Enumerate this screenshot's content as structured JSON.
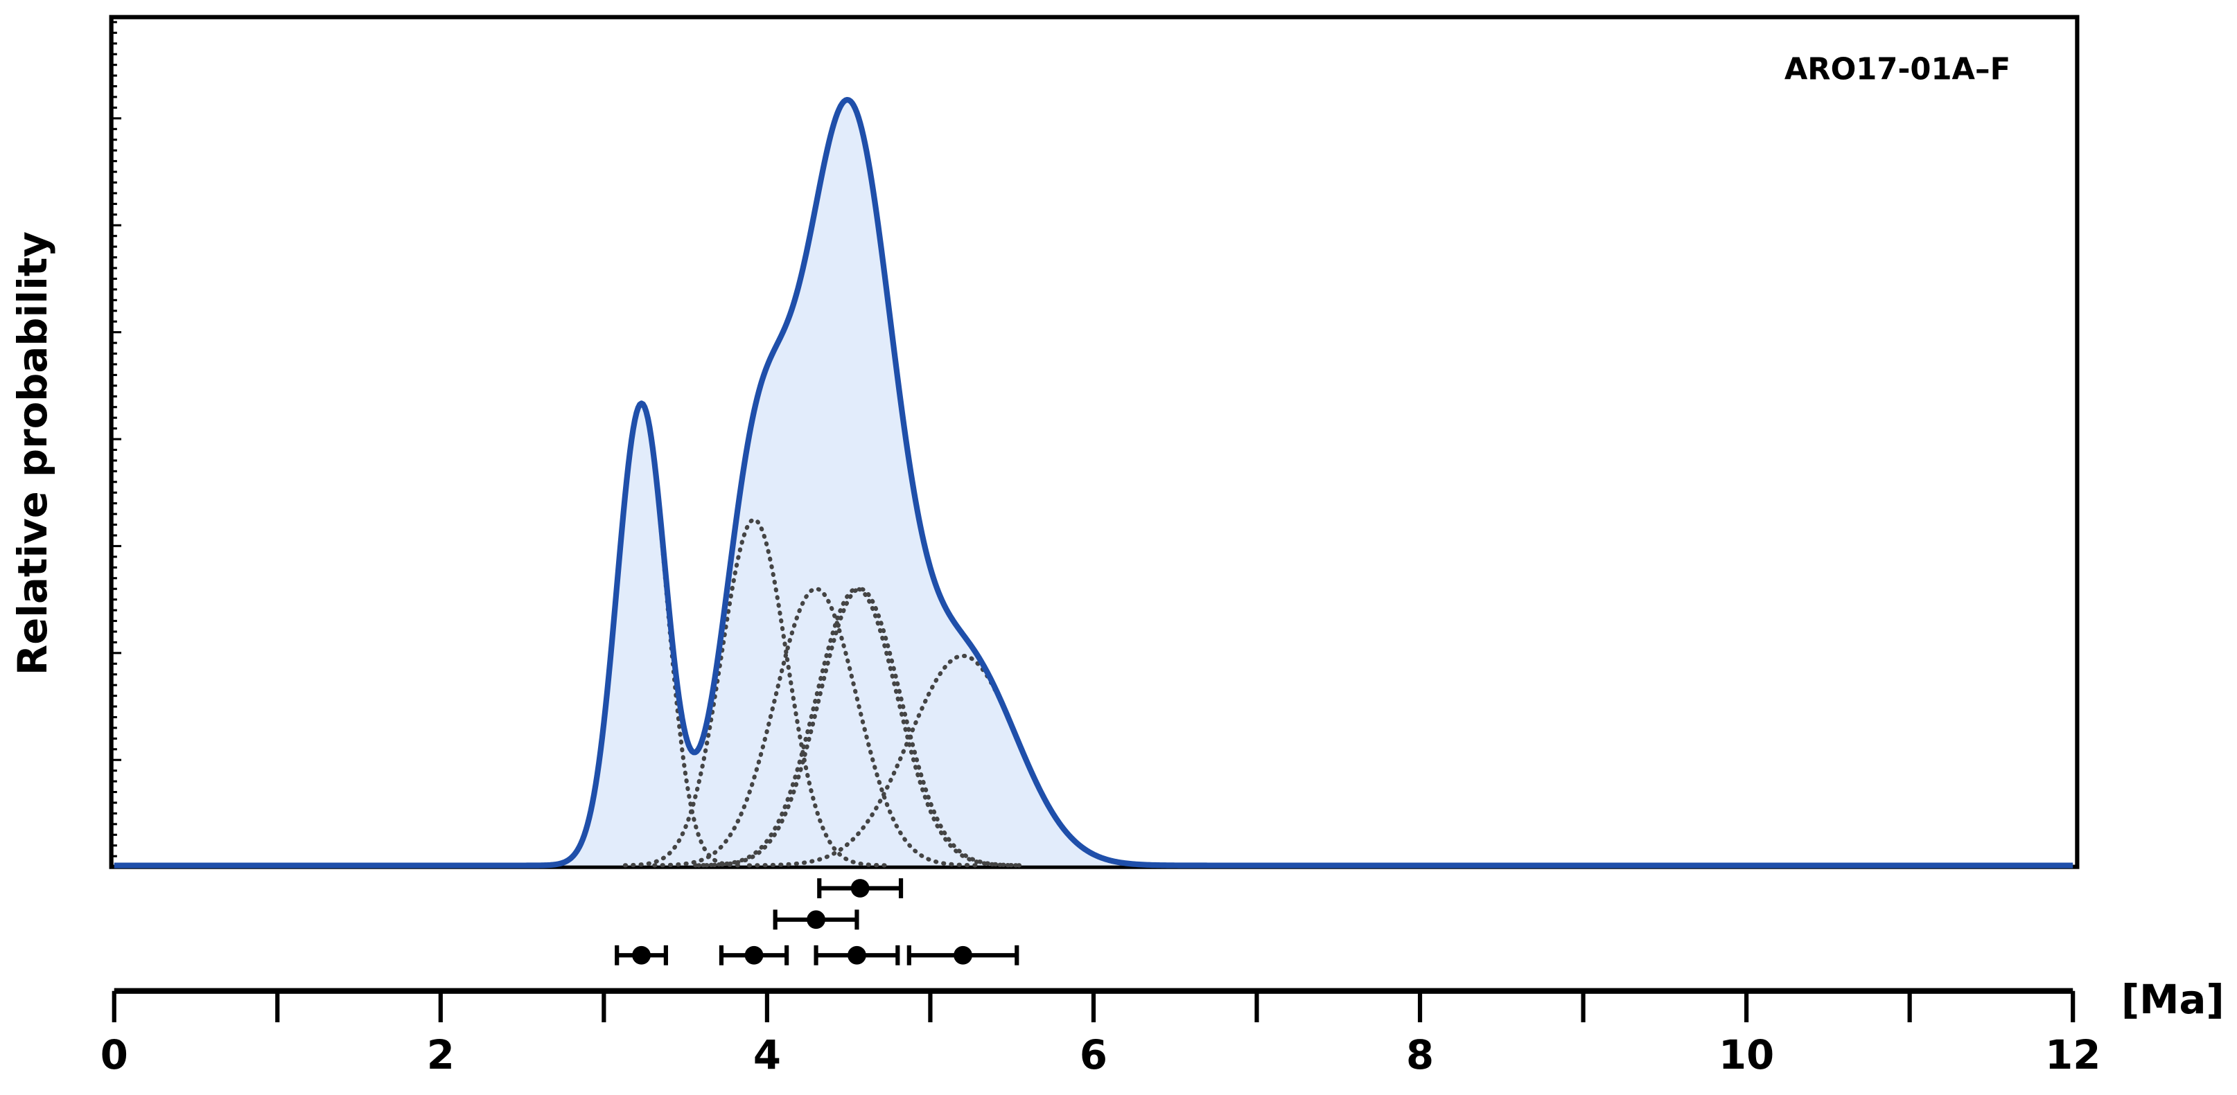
{
  "chart_data": {
    "type": "density",
    "annotation": "ARO17-01A–F",
    "y_label": "Relative probability",
    "x_unit_label": "[Ma]",
    "ages": [
      3.23,
      3.92,
      4.3,
      4.55,
      4.57,
      5.2
    ],
    "errors": [
      0.15,
      0.2,
      0.25,
      0.25,
      0.25,
      0.33
    ],
    "xlim": [
      0,
      12
    ],
    "xticks": [
      0,
      2,
      4,
      6,
      8,
      10,
      12
    ],
    "xminorticks": [
      1,
      3,
      5,
      7,
      9,
      11
    ],
    "color": "#1f4faa",
    "fill": "#e2ecfb",
    "component_color": "#444444",
    "point_color": "#000000"
  }
}
